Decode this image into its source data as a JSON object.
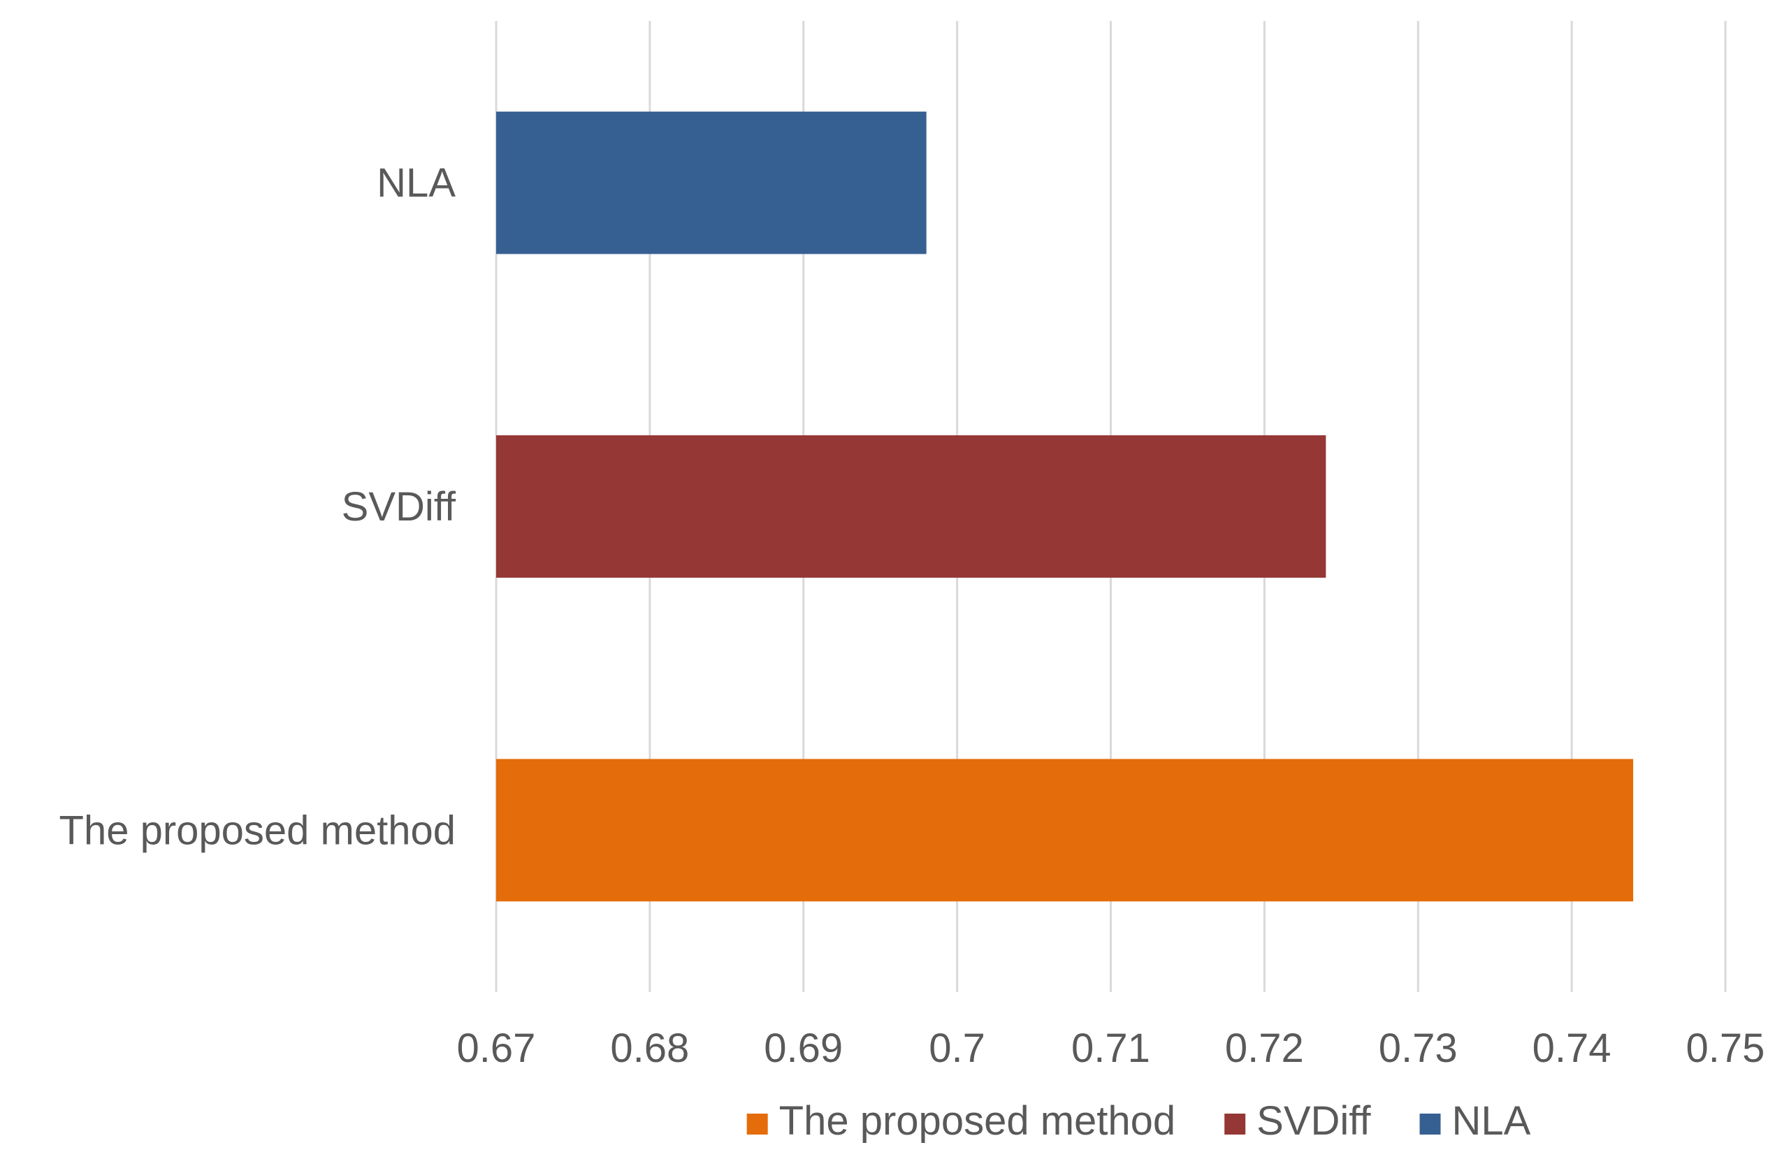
{
  "chart_data": {
    "type": "bar",
    "orientation": "horizontal",
    "title": "",
    "xlabel": "",
    "ylabel": "",
    "xlim": [
      0.67,
      0.75
    ],
    "ticks": [
      0.67,
      0.68,
      0.69,
      0.7,
      0.71,
      0.72,
      0.73,
      0.74,
      0.75
    ],
    "tick_labels": [
      "0.67",
      "0.68",
      "0.69",
      "0.7",
      "0.71",
      "0.72",
      "0.73",
      "0.74",
      "0.75"
    ],
    "grid": true,
    "legend_position": "bottom",
    "categories_top_to_bottom": [
      "NLA",
      "SVDiff",
      "The proposed method"
    ],
    "series": [
      {
        "name": "NLA",
        "value": 0.698,
        "color": "#376092"
      },
      {
        "name": "SVDiff",
        "value": 0.724,
        "color": "#953735"
      },
      {
        "name": "The proposed method",
        "value": 0.744,
        "color": "#E46C0A"
      }
    ],
    "legend_order": [
      "The proposed method",
      "SVDiff",
      "NLA"
    ]
  }
}
